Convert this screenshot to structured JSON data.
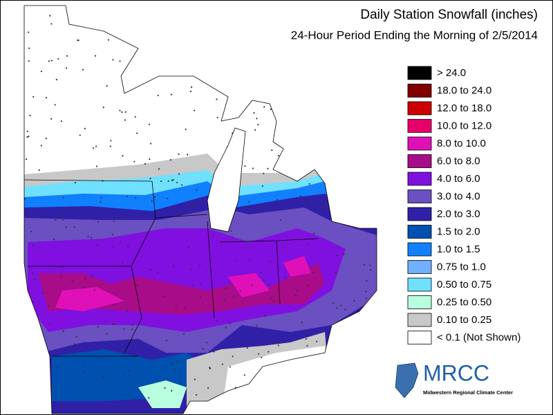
{
  "title": "Daily Station Snowfall (inches)",
  "subtitle": "24-Hour Period Ending the Morning of 2/5/2014",
  "legend": [
    {
      "label": "> 24.0",
      "color": "#000000"
    },
    {
      "label": "18.0 to 24.0",
      "color": "#800000"
    },
    {
      "label": "12.0 to 18.0",
      "color": "#cc0000"
    },
    {
      "label": "10.0 to 12.0",
      "color": "#e8006a"
    },
    {
      "label": "8.0 to 10.0",
      "color": "#e010b8"
    },
    {
      "label": "6.0 to 8.0",
      "color": "#a80c88"
    },
    {
      "label": "4.0 to 6.0",
      "color": "#8010e0"
    },
    {
      "label": "3.0 to 4.0",
      "color": "#6a50c0"
    },
    {
      "label": "2.0 to 3.0",
      "color": "#3020a8"
    },
    {
      "label": "1.5 to 2.0",
      "color": "#0050b0"
    },
    {
      "label": "1.0 to 1.5",
      "color": "#1080ff"
    },
    {
      "label": "0.75 to 1.0",
      "color": "#70b0ff"
    },
    {
      "label": "0.50 to 0.75",
      "color": "#70e0ff"
    },
    {
      "label": "0.25 to 0.50",
      "color": "#b8ffe0"
    },
    {
      "label": "0.10 to 0.25",
      "color": "#c8c8c8"
    },
    {
      "label": "< 0.1 (Not Shown)",
      "color": "#ffffff"
    }
  ],
  "logo": {
    "name": "MRCC",
    "subtitle": "Midwestern Regional Climate Center"
  }
}
